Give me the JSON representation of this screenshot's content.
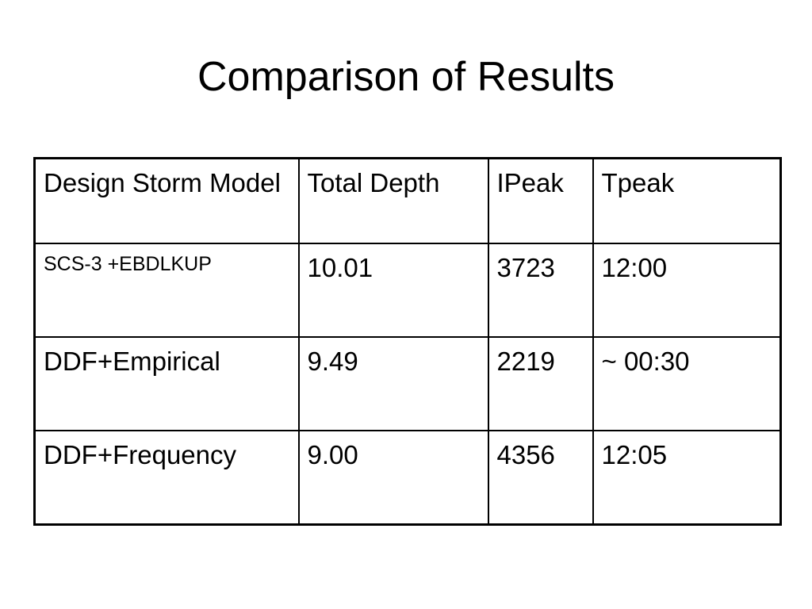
{
  "header": {
    "title": "Comparison of Results"
  },
  "table": {
    "columns": [
      "Design Storm Model",
      "Total Depth",
      "IPeak",
      "Tpeak"
    ],
    "rows": [
      [
        "SCS-3 +EBDLKUP",
        "10.01",
        "3723",
        "12:00"
      ],
      [
        "DDF+Empirical",
        "9.49",
        "2219",
        "~ 00:30"
      ],
      [
        "DDF+Frequency",
        "9.00",
        "4356",
        "12:05"
      ]
    ]
  }
}
